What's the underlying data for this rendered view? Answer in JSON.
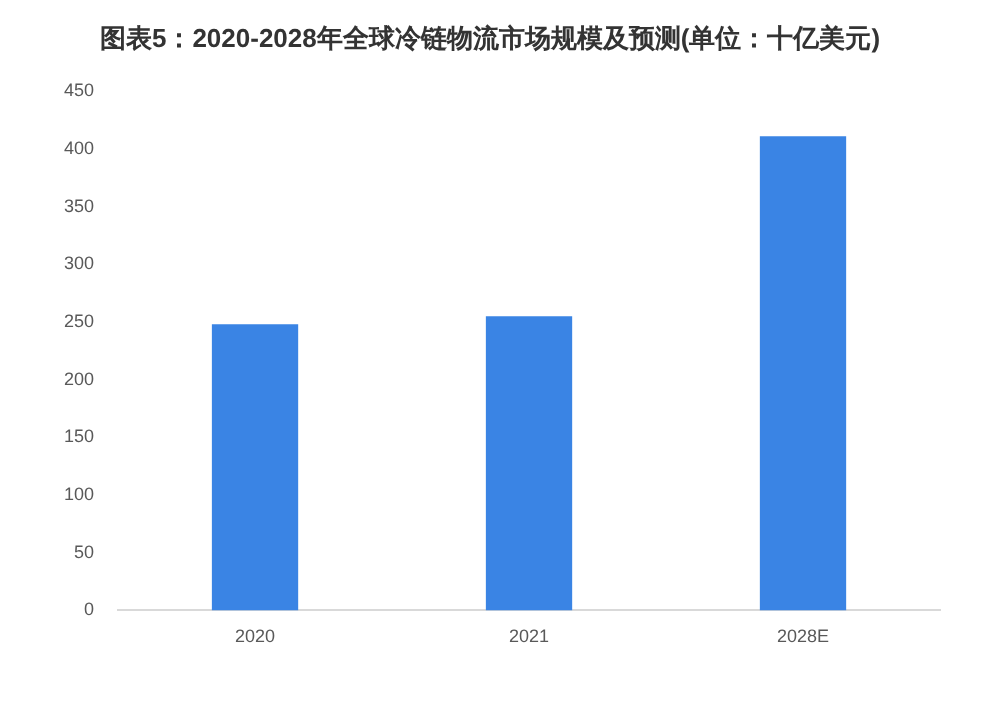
{
  "chart_data": {
    "type": "bar",
    "title": "图表5：2020-2028年全球冷链物流市场规模及预测(单位：十亿美元)",
    "categories": [
      "2020",
      "2021",
      "2028E"
    ],
    "values": [
      248,
      255,
      411
    ],
    "color": "#3a84e4",
    "ylim": [
      0,
      450
    ],
    "yticks": [
      0,
      50,
      100,
      150,
      200,
      250,
      300,
      350,
      400,
      450
    ],
    "grid": false,
    "legend": false
  }
}
